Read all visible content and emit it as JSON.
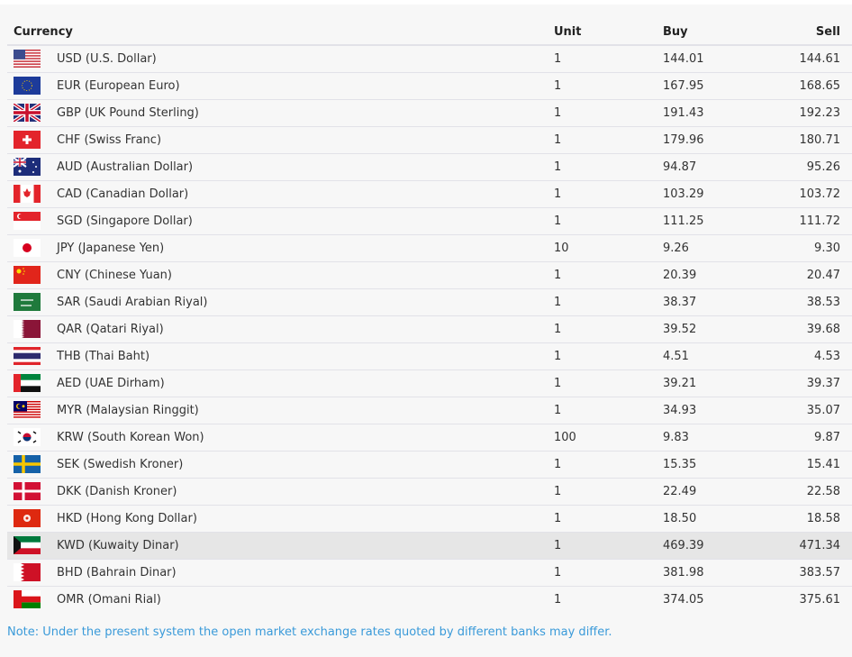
{
  "header": {
    "currency": "Currency",
    "unit": "Unit",
    "buy": "Buy",
    "sell": "Sell"
  },
  "rows": [
    {
      "flag": "us-flag-icon",
      "name": "USD (U.S. Dollar)",
      "unit": "1",
      "buy": "144.01",
      "sell": "144.61"
    },
    {
      "flag": "eu-flag-icon",
      "name": "EUR (European Euro)",
      "unit": "1",
      "buy": "167.95",
      "sell": "168.65"
    },
    {
      "flag": "gb-flag-icon",
      "name": "GBP (UK Pound Sterling)",
      "unit": "1",
      "buy": "191.43",
      "sell": "192.23"
    },
    {
      "flag": "ch-flag-icon",
      "name": "CHF (Swiss Franc)",
      "unit": "1",
      "buy": "179.96",
      "sell": "180.71"
    },
    {
      "flag": "au-flag-icon",
      "name": "AUD (Australian Dollar)",
      "unit": "1",
      "buy": "94.87",
      "sell": "95.26"
    },
    {
      "flag": "ca-flag-icon",
      "name": "CAD (Canadian Dollar)",
      "unit": "1",
      "buy": "103.29",
      "sell": "103.72"
    },
    {
      "flag": "sg-flag-icon",
      "name": "SGD (Singapore Dollar)",
      "unit": "1",
      "buy": "111.25",
      "sell": "111.72"
    },
    {
      "flag": "jp-flag-icon",
      "name": "JPY (Japanese Yen)",
      "unit": "10",
      "buy": "9.26",
      "sell": "9.30"
    },
    {
      "flag": "cn-flag-icon",
      "name": "CNY (Chinese Yuan)",
      "unit": "1",
      "buy": "20.39",
      "sell": "20.47"
    },
    {
      "flag": "sa-flag-icon",
      "name": "SAR (Saudi Arabian Riyal)",
      "unit": "1",
      "buy": "38.37",
      "sell": "38.53"
    },
    {
      "flag": "qa-flag-icon",
      "name": "QAR (Qatari Riyal)",
      "unit": "1",
      "buy": "39.52",
      "sell": "39.68"
    },
    {
      "flag": "th-flag-icon",
      "name": "THB (Thai Baht)",
      "unit": "1",
      "buy": "4.51",
      "sell": "4.53"
    },
    {
      "flag": "ae-flag-icon",
      "name": "AED (UAE Dirham)",
      "unit": "1",
      "buy": "39.21",
      "sell": "39.37"
    },
    {
      "flag": "my-flag-icon",
      "name": "MYR (Malaysian Ringgit)",
      "unit": "1",
      "buy": "34.93",
      "sell": "35.07"
    },
    {
      "flag": "kr-flag-icon",
      "name": "KRW (South Korean Won)",
      "unit": "100",
      "buy": "9.83",
      "sell": "9.87"
    },
    {
      "flag": "se-flag-icon",
      "name": "SEK (Swedish Kroner)",
      "unit": "1",
      "buy": "15.35",
      "sell": "15.41"
    },
    {
      "flag": "dk-flag-icon",
      "name": "DKK (Danish Kroner)",
      "unit": "1",
      "buy": "22.49",
      "sell": "22.58"
    },
    {
      "flag": "hk-flag-icon",
      "name": "HKD (Hong Kong Dollar)",
      "unit": "1",
      "buy": "18.50",
      "sell": "18.58"
    },
    {
      "flag": "kw-flag-icon",
      "name": "KWD (Kuwaity Dinar)",
      "unit": "1",
      "buy": "469.39",
      "sell": "471.34",
      "highlighted": true
    },
    {
      "flag": "bh-flag-icon",
      "name": "BHD (Bahrain Dinar)",
      "unit": "1",
      "buy": "381.98",
      "sell": "383.57"
    },
    {
      "flag": "om-flag-icon",
      "name": "OMR (Omani Rial)",
      "unit": "1",
      "buy": "374.05",
      "sell": "375.61"
    }
  ],
  "note": "Note: Under the present system the open market exchange rates quoted by different banks may differ.",
  "colors": {
    "note": "#3a9ad9",
    "highlight": "#e6e6e6",
    "background": "#f7f7f7"
  }
}
